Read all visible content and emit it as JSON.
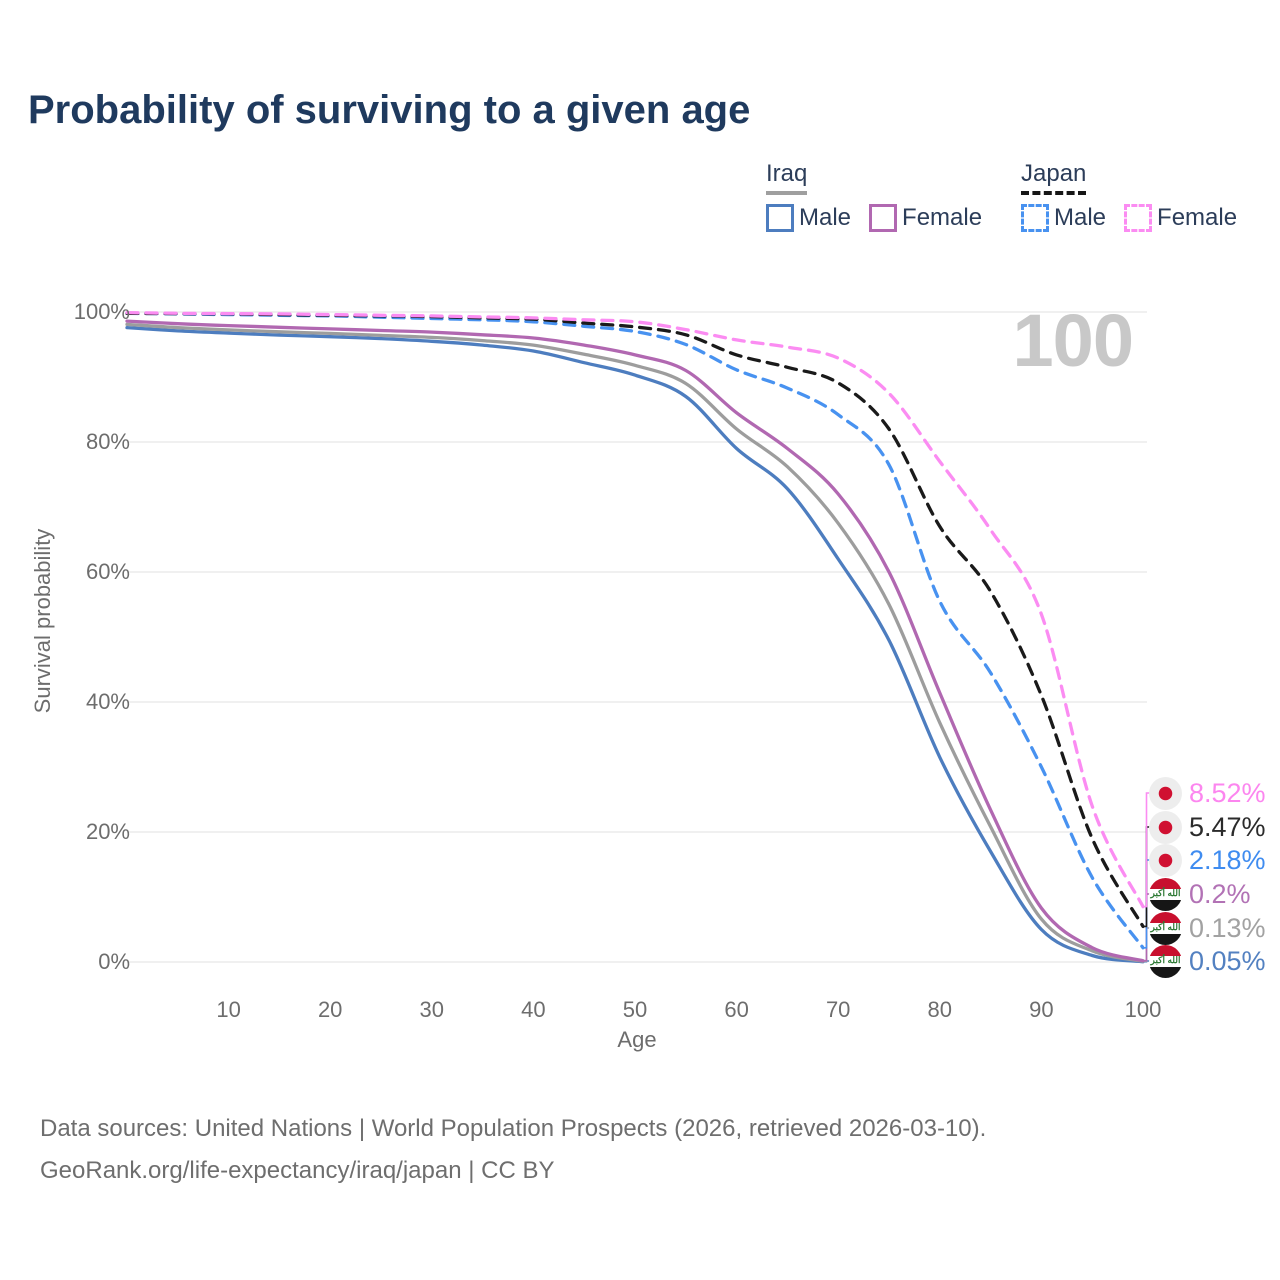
{
  "title": "Probability of surviving to a given age",
  "watermark": "100",
  "legend": {
    "groups": [
      {
        "country": "Iraq",
        "line_style": "solid",
        "underline_color": "#9f9f9f",
        "items": [
          {
            "label": "Male",
            "color": "#4d7dbf"
          },
          {
            "label": "Female",
            "color": "#b168b1"
          }
        ]
      },
      {
        "country": "Japan",
        "line_style": "dashed",
        "underline_color": "#161616",
        "items": [
          {
            "label": "Male",
            "color": "#4892f0"
          },
          {
            "label": "Female",
            "color": "#fb8cf2"
          }
        ]
      }
    ]
  },
  "axes": {
    "y_title": "Survival probability",
    "x_title": "Age",
    "y_ticks": [
      "0%",
      "20%",
      "40%",
      "60%",
      "80%",
      "100%"
    ],
    "x_ticks": [
      "10",
      "20",
      "30",
      "40",
      "50",
      "60",
      "70",
      "80",
      "90",
      "100"
    ]
  },
  "chart_data": {
    "type": "line",
    "title": "Probability of surviving to a given age",
    "xlabel": "Age",
    "ylabel": "Survival probability",
    "x_range": [
      0,
      100
    ],
    "y_range_percent": [
      0,
      100
    ],
    "grid": "horizontal",
    "legend_position": "top-right",
    "x": [
      0,
      5,
      10,
      15,
      20,
      25,
      30,
      35,
      40,
      45,
      50,
      55,
      60,
      65,
      70,
      75,
      80,
      85,
      90,
      95,
      100
    ],
    "series": [
      {
        "name": "Iraq Male",
        "country": "Iraq",
        "sex": "Male",
        "line": "solid",
        "color": "#4d7dbf",
        "end_label": "0.05%",
        "label_color": "#5381c1",
        "flag": "iraq",
        "row": 5,
        "values": [
          97.6,
          97.1,
          96.75,
          96.45,
          96.2,
          95.9,
          95.5,
          94.9,
          94.0,
          92.2,
          90.3,
          87.0,
          79.0,
          72.8,
          62.0,
          49.5,
          31.5,
          17.0,
          5.0,
          1.0,
          0.05
        ]
      },
      {
        "name": "Iraq (both sexes)",
        "country": "Iraq",
        "sex": "Both",
        "line": "solid",
        "color": "#9d9d9d",
        "end_label": "0.13%",
        "label_color": "#a2a2a2",
        "flag": "iraq",
        "row": 4,
        "values": [
          98.1,
          97.6,
          97.25,
          96.95,
          96.7,
          96.4,
          96.1,
          95.6,
          94.9,
          93.5,
          91.8,
          89.0,
          82.0,
          76.2,
          67.5,
          55.0,
          36.8,
          20.8,
          6.6,
          1.7,
          0.13
        ]
      },
      {
        "name": "Iraq Female",
        "country": "Iraq",
        "sex": "Female",
        "line": "solid",
        "color": "#b168b1",
        "end_label": "0.2%",
        "label_color": "#b272b5",
        "flag": "iraq",
        "row": 3,
        "values": [
          98.6,
          98.2,
          97.9,
          97.65,
          97.4,
          97.15,
          96.9,
          96.5,
          96.0,
          94.9,
          93.4,
          91.0,
          84.5,
          79.0,
          72.0,
          60.0,
          41.4,
          23.4,
          8.3,
          2.2,
          0.2
        ]
      },
      {
        "name": "Japan Male",
        "country": "Japan",
        "sex": "Male",
        "line": "dashed",
        "color": "#4892f0",
        "end_label": "2.18%",
        "label_color": "#3f8cf0",
        "flag": "japan",
        "row": 2,
        "values": [
          99.8,
          99.7,
          99.6,
          99.5,
          99.4,
          99.2,
          99.0,
          98.8,
          98.5,
          97.8,
          97.0,
          95.0,
          91.1,
          88.3,
          84.2,
          76.5,
          55.5,
          44.5,
          30.0,
          13.0,
          2.18
        ]
      },
      {
        "name": "Japan (both sexes)",
        "country": "Japan",
        "sex": "Both",
        "line": "dashed",
        "color": "#1a1a1a",
        "end_label": "5.47%",
        "label_color": "#2b2b2b",
        "flag": "japan",
        "row": 1,
        "values": [
          99.8,
          99.75,
          99.7,
          99.6,
          99.5,
          99.4,
          99.3,
          99.1,
          98.9,
          98.3,
          97.7,
          96.5,
          93.4,
          91.5,
          89.1,
          82.0,
          67.0,
          57.0,
          41.0,
          19.0,
          5.47
        ]
      },
      {
        "name": "Japan Female",
        "country": "Japan",
        "sex": "Female",
        "line": "dashed",
        "color": "#fb8cf2",
        "end_label": "8.52%",
        "label_color": "#fc86ef",
        "flag": "japan",
        "row": 0,
        "values": [
          99.9,
          99.8,
          99.75,
          99.7,
          99.6,
          99.5,
          99.4,
          99.25,
          99.1,
          98.8,
          98.5,
          97.3,
          95.7,
          94.6,
          92.9,
          87.5,
          77.0,
          66.5,
          53.5,
          24.0,
          8.52
        ]
      }
    ]
  },
  "footer": {
    "line1": "Data sources: United Nations | World Population Prospects (2026, retrieved 2026-03-10).",
    "line2": "GeoRank.org/life-expectancy/iraq/japan | CC BY"
  }
}
